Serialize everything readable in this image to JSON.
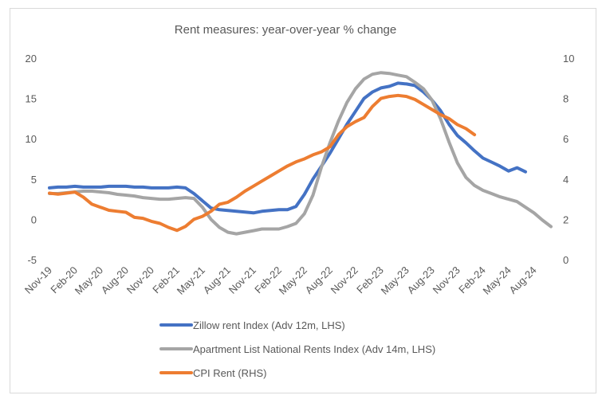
{
  "chart_data": {
    "type": "line",
    "title": "Rent measures: year-over-year % change",
    "categories": [
      "Nov-19",
      null,
      null,
      "Feb-20",
      null,
      null,
      "May-20",
      null,
      null,
      "Aug-20",
      null,
      null,
      "Nov-20",
      null,
      null,
      "Feb-21",
      null,
      null,
      "May-21",
      null,
      null,
      "Aug-21",
      null,
      null,
      "Nov-21",
      null,
      null,
      "Feb-22",
      null,
      null,
      "May-22",
      null,
      null,
      "Aug-22",
      null,
      null,
      "Nov-22",
      null,
      null,
      "Feb-23",
      null,
      null,
      "May-23",
      null,
      null,
      "Aug-23",
      null,
      null,
      "Nov-23",
      null,
      null,
      "Feb-24",
      null,
      null,
      "May-24",
      null,
      null,
      "Aug-24",
      null,
      null
    ],
    "series": [
      {
        "name": "Zillow rent Index (Adv 12m, LHS)",
        "color": "#4472c4",
        "values": [
          3.9,
          4.0,
          4.0,
          4.1,
          4.0,
          4.0,
          4.0,
          4.1,
          4.1,
          4.1,
          4.0,
          4.0,
          3.9,
          3.9,
          3.9,
          4.0,
          3.9,
          3.2,
          2.3,
          1.4,
          1.2,
          1.1,
          1.0,
          0.9,
          0.8,
          1.0,
          1.1,
          1.2,
          1.2,
          1.6,
          3.1,
          5.0,
          6.6,
          8.2,
          10.0,
          11.8,
          13.4,
          15.0,
          15.8,
          16.3,
          16.5,
          16.9,
          16.8,
          16.6,
          15.8,
          14.8,
          13.5,
          11.8,
          10.4,
          9.5,
          8.5,
          7.6,
          7.1,
          6.6,
          6.0,
          6.4,
          5.9,
          null,
          null,
          null
        ]
      },
      {
        "name": "Apartment List National Rents Index (Adv 14m, LHS)",
        "color": "#a5a5a5",
        "values": [
          3.2,
          3.2,
          3.3,
          3.4,
          3.5,
          3.5,
          3.4,
          3.3,
          3.1,
          3.0,
          2.9,
          2.7,
          2.6,
          2.5,
          2.5,
          2.6,
          2.7,
          2.6,
          1.5,
          0.0,
          -1.0,
          -1.6,
          -1.8,
          -1.6,
          -1.4,
          -1.2,
          -1.2,
          -1.2,
          -0.9,
          -0.5,
          0.7,
          3.0,
          6.5,
          9.5,
          12.2,
          14.5,
          16.2,
          17.4,
          18.0,
          18.2,
          18.1,
          17.9,
          17.7,
          17.0,
          16.2,
          14.8,
          12.5,
          9.6,
          7.0,
          5.2,
          4.2,
          3.6,
          3.2,
          2.8,
          2.5,
          2.2,
          1.5,
          0.8,
          -0.1,
          -0.9
        ]
      },
      {
        "name": "CPI Rent (RHS)",
        "color": "#ed7d31",
        "axis": "y2",
        "values": [
          3.3,
          3.25,
          3.3,
          3.35,
          3.1,
          2.75,
          2.6,
          2.45,
          2.4,
          2.35,
          2.1,
          2.05,
          1.9,
          1.8,
          1.6,
          1.45,
          1.65,
          2.0,
          2.15,
          2.4,
          2.75,
          2.85,
          3.1,
          3.4,
          3.65,
          3.9,
          4.15,
          4.4,
          4.65,
          4.85,
          5.0,
          5.2,
          5.35,
          5.6,
          6.2,
          6.6,
          6.85,
          7.05,
          7.6,
          8.0,
          8.1,
          8.15,
          8.1,
          7.95,
          7.7,
          7.45,
          7.2,
          7.0,
          6.7,
          6.5,
          6.2,
          null,
          null,
          null,
          null,
          null,
          null,
          null,
          null,
          null
        ]
      }
    ],
    "ylim": [
      -5,
      20
    ],
    "yticks": [
      -5,
      0,
      5,
      10,
      15,
      20
    ],
    "y2lim": [
      0,
      10
    ],
    "y2ticks": [
      0,
      2,
      4,
      6,
      8,
      10
    ],
    "grid": false,
    "legend": "bottom"
  }
}
